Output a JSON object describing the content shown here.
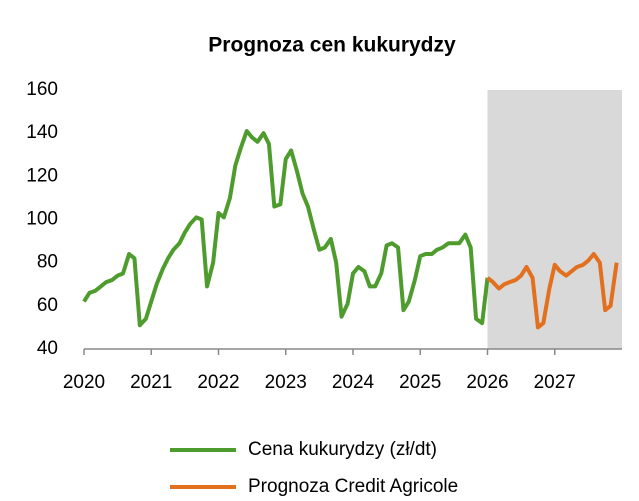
{
  "chart_data": {
    "type": "line",
    "title": "Prognoza cen kukurydzy",
    "xlim": [
      2020,
      2028
    ],
    "xticks": [
      2020,
      2021,
      2022,
      2023,
      2024,
      2025,
      2026,
      2027
    ],
    "ylim": [
      40,
      160
    ],
    "yticks": [
      40,
      60,
      80,
      100,
      120,
      140,
      160
    ],
    "shade_xlim": [
      2026,
      2028
    ],
    "shade_color": "#d9d9d9",
    "grid": false,
    "series": [
      {
        "name": "Cena kukurydzy (zł/dt)",
        "color": "#4e9c2d",
        "x": [
          2020.0,
          2020.08,
          2020.17,
          2020.25,
          2020.33,
          2020.42,
          2020.5,
          2020.58,
          2020.67,
          2020.75,
          2020.83,
          2020.92,
          2021.0,
          2021.08,
          2021.17,
          2021.25,
          2021.33,
          2021.42,
          2021.5,
          2021.58,
          2021.67,
          2021.75,
          2021.83,
          2021.92,
          2022.0,
          2022.08,
          2022.17,
          2022.25,
          2022.33,
          2022.42,
          2022.5,
          2022.58,
          2022.67,
          2022.75,
          2022.83,
          2022.92,
          2023.0,
          2023.08,
          2023.17,
          2023.25,
          2023.33,
          2023.42,
          2023.5,
          2023.58,
          2023.67,
          2023.75,
          2023.83,
          2023.92,
          2024.0,
          2024.08,
          2024.17,
          2024.25,
          2024.33,
          2024.42,
          2024.5,
          2024.58,
          2024.67,
          2024.75,
          2024.83,
          2024.92,
          2025.0,
          2025.08,
          2025.17,
          2025.25,
          2025.33,
          2025.42,
          2025.5,
          2025.58,
          2025.67,
          2025.75,
          2025.83,
          2025.92,
          2026.0
        ],
        "values": [
          62,
          66,
          67,
          69,
          71,
          72,
          74,
          75,
          84,
          82,
          51,
          54,
          62,
          70,
          77,
          82,
          86,
          89,
          94,
          98,
          101,
          100,
          69,
          80,
          103,
          101,
          110,
          125,
          133,
          141,
          138,
          136,
          140,
          135,
          106,
          107,
          128,
          132,
          122,
          112,
          106,
          95,
          86,
          87,
          91,
          80,
          55,
          61,
          75,
          78,
          76,
          69,
          69,
          75,
          88,
          89,
          87,
          58,
          62,
          72,
          83,
          84,
          84,
          86,
          87,
          89,
          89,
          89,
          93,
          87,
          54,
          52,
          73
        ]
      },
      {
        "name": "Prognoza Credit Agricole",
        "color": "#e2701f",
        "x": [
          2026.0,
          2026.08,
          2026.17,
          2026.25,
          2026.33,
          2026.42,
          2026.5,
          2026.58,
          2026.67,
          2026.75,
          2026.83,
          2026.92,
          2027.0,
          2027.08,
          2027.17,
          2027.25,
          2027.33,
          2027.42,
          2027.5,
          2027.58,
          2027.67,
          2027.75,
          2027.83,
          2027.92
        ],
        "values": [
          73,
          71,
          68,
          70,
          71,
          72,
          74,
          78,
          73,
          50,
          52,
          68,
          79,
          76,
          74,
          76,
          78,
          79,
          81,
          84,
          80,
          58,
          60,
          80
        ]
      }
    ]
  }
}
